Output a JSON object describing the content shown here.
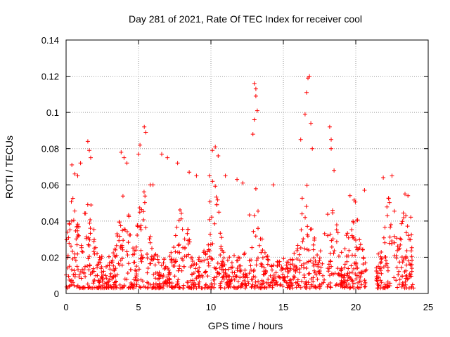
{
  "chart_data": {
    "type": "scatter",
    "title": "Day 281 of 2021, Rate Of TEC Index for receiver cool",
    "xlabel": "GPS time / hours",
    "ylabel": "ROTI / TECUs",
    "xlim": [
      0,
      25
    ],
    "ylim": [
      0,
      0.14
    ],
    "xticks": [
      "0",
      "5",
      "10",
      "15",
      "20",
      "25"
    ],
    "yticks": [
      "0",
      "0.02",
      "0.04",
      "0.06",
      "0.08",
      "0.1",
      "0.12",
      "0.14"
    ],
    "grid": true,
    "marker": "+",
    "color": "#ff0000",
    "series": [
      {
        "x": [
          0.4,
          0.6,
          0.8,
          1.0,
          1.5,
          1.6,
          1.7,
          3.8,
          4.0,
          4.2,
          5.0,
          5.1,
          5.4,
          5.5,
          5.8,
          6.0,
          6.6,
          7.0,
          7.7,
          8.5,
          9.0,
          9.9,
          10.1,
          10.3,
          10.5,
          11.0,
          11.8,
          12.2,
          12.9,
          13.0,
          13.0,
          13.1,
          13.1,
          13.2,
          14.3,
          16.2,
          16.5,
          16.6,
          16.7,
          16.8,
          16.9,
          17.0,
          18.2,
          18.3,
          18.3,
          18.5,
          19.6,
          20.6,
          21.9,
          22.5,
          23.4,
          23.6
        ],
        "y": [
          0.071,
          0.066,
          0.065,
          0.072,
          0.084,
          0.079,
          0.075,
          0.078,
          0.075,
          0.072,
          0.077,
          0.082,
          0.092,
          0.089,
          0.06,
          0.06,
          0.077,
          0.075,
          0.072,
          0.067,
          0.065,
          0.065,
          0.079,
          0.081,
          0.076,
          0.065,
          0.063,
          0.061,
          0.088,
          0.096,
          0.116,
          0.113,
          0.109,
          0.101,
          0.06,
          0.085,
          0.099,
          0.111,
          0.119,
          0.12,
          0.094,
          0.08,
          0.092,
          0.085,
          0.08,
          0.068,
          0.054,
          0.057,
          0.064,
          0.065,
          0.055,
          0.054
        ]
      }
    ]
  }
}
